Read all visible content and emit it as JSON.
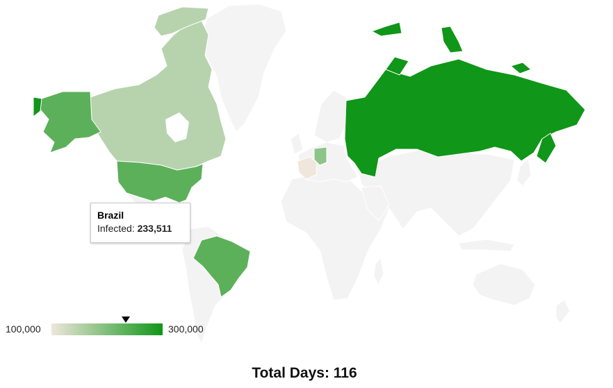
{
  "map": {
    "metric_label": "Infected",
    "color_scale": {
      "min_color": "#efe6dc",
      "max_color": "#109618",
      "no_data_color": "#f5f5f5"
    },
    "regions": [
      {
        "name": "United States",
        "level": "mid-high"
      },
      {
        "name": "Canada",
        "level": "low"
      },
      {
        "name": "Greenland",
        "level": "no-data"
      },
      {
        "name": "Russia",
        "level": "max"
      },
      {
        "name": "Brazil",
        "level": "mid"
      },
      {
        "name": "Germany",
        "level": "low-mid"
      },
      {
        "name": "France",
        "level": "min"
      }
    ]
  },
  "tooltip": {
    "country": "Brazil",
    "metric_label": "Infected:",
    "value": "233,511"
  },
  "legend": {
    "min_label": "100,000",
    "max_label": "300,000",
    "min_value": 100000,
    "max_value": 300000,
    "marker_value": 233511
  },
  "footer": {
    "total_days_text": "Total Days: 116"
  }
}
